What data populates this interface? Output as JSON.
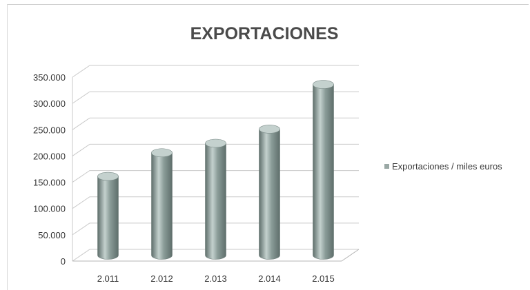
{
  "chart_data": {
    "type": "bar",
    "title": "EXPORTACIONES",
    "xlabel": "",
    "ylabel": "",
    "categories": [
      "2.011",
      "2.012",
      "2.013",
      "2.014",
      "2.015"
    ],
    "series": [
      {
        "name": "Exportaciones / miles euros",
        "values": [
          150000,
          195000,
          213000,
          240000,
          325000
        ]
      }
    ],
    "ylim": [
      0,
      350000
    ],
    "y_ticks": [
      "0",
      "50.000",
      "100.000",
      "150.000",
      "200.000",
      "250.000",
      "300.000",
      "350.000"
    ],
    "grid": true,
    "legend_position": "right",
    "bar_shape": "cylinder-3d",
    "colors": {
      "bar": "#8a9c98",
      "bar_light": "#c4d1ce",
      "bar_dark": "#5e6e6b",
      "grid": "#c9c9c9",
      "legend_swatch": "#9aa8a5"
    }
  }
}
